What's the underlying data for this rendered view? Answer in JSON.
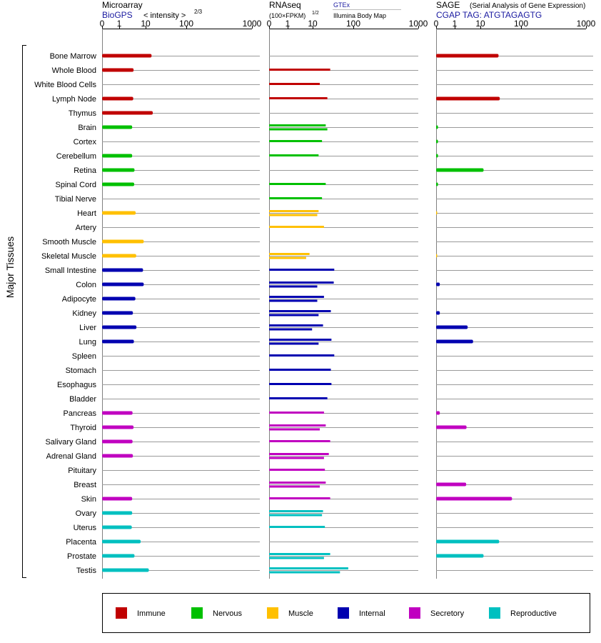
{
  "panels": [
    {
      "title": "Microarray",
      "title_suffix": "< intensity >",
      "exponent": "2/3",
      "source": "BioGPS",
      "ticks": [
        "0",
        "1",
        "10",
        "100",
        "1000"
      ]
    },
    {
      "title": "RNAseq",
      "title_sub": "(100×FPKM)",
      "exponent": "1/2",
      "source1": "GTEx",
      "source2": "Illumina Body Map",
      "ticks": [
        "0",
        "1",
        "10",
        "100",
        "1000"
      ]
    },
    {
      "title": "SAGE",
      "title_note": "(Serial Analysis of Gene Expression)",
      "source": "CGAP TAG: ATGTAGAGTG",
      "ticks": [
        "0",
        "1",
        "10",
        "100",
        "1000"
      ]
    }
  ],
  "y_group_label": "Major Tissues",
  "legend": [
    {
      "label": "Immune",
      "color": "#c00000"
    },
    {
      "label": "Nervous",
      "color": "#00c000"
    },
    {
      "label": "Muscle",
      "color": "#ffc000"
    },
    {
      "label": "Internal",
      "color": "#0000b0"
    },
    {
      "label": "Secretory",
      "color": "#c000c0"
    },
    {
      "label": "Reproductive",
      "color": "#00c0c0"
    }
  ],
  "chart_data": {
    "type": "bar",
    "orientation": "horizontal",
    "x_scale": "log-like (0, 1, 10, 100, 1000)",
    "xlim": [
      0,
      1000
    ],
    "categories": [
      "Bone Marrow",
      "Whole Blood",
      "White Blood Cells",
      "Lymph Node",
      "Thymus",
      "Brain",
      "Cortex",
      "Cerebellum",
      "Retina",
      "Spinal Cord",
      "Tibial Nerve",
      "Heart",
      "Artery",
      "Smooth Muscle",
      "Skeletal Muscle",
      "Small Intestine",
      "Colon",
      "Adipocyte",
      "Kidney",
      "Liver",
      "Lung",
      "Spleen",
      "Stomach",
      "Esophagus",
      "Bladder",
      "Pancreas",
      "Thyroid",
      "Salivary Gland",
      "Adrenal Gland",
      "Pituitary",
      "Breast",
      "Skin",
      "Ovary",
      "Uterus",
      "Placenta",
      "Prostate",
      "Testis"
    ],
    "groups": [
      "Immune",
      "Immune",
      "Immune",
      "Immune",
      "Immune",
      "Nervous",
      "Nervous",
      "Nervous",
      "Nervous",
      "Nervous",
      "Nervous",
      "Muscle",
      "Muscle",
      "Muscle",
      "Muscle",
      "Internal",
      "Internal",
      "Internal",
      "Internal",
      "Internal",
      "Internal",
      "Internal",
      "Internal",
      "Internal",
      "Internal",
      "Secretory",
      "Secretory",
      "Secretory",
      "Secretory",
      "Secretory",
      "Secretory",
      "Secretory",
      "Reproductive",
      "Reproductive",
      "Reproductive",
      "Reproductive",
      "Reproductive"
    ],
    "series": [
      {
        "name": "Microarray",
        "values": [
          14,
          3.5,
          null,
          3.4,
          15,
          3.1,
          null,
          3.1,
          3.8,
          3.7,
          null,
          4.2,
          null,
          8.5,
          4.4,
          8,
          8.5,
          4.1,
          3.3,
          4.5,
          3.6,
          null,
          null,
          null,
          null,
          3.2,
          3.5,
          3.2,
          3.3,
          null,
          null,
          3.1,
          3.1,
          3.0,
          6.5,
          3.8,
          12
        ]
      },
      {
        "name": "RNAseq GTEx",
        "values": [
          null,
          27,
          15,
          23,
          null,
          21,
          17,
          14,
          null,
          21,
          17,
          14,
          19,
          null,
          7.5,
          34,
          33,
          19,
          28,
          18,
          29,
          34,
          28,
          29,
          23,
          19,
          21,
          27,
          25,
          20,
          21,
          27,
          18,
          20,
          null,
          27,
          75
        ]
      },
      {
        "name": "RNAseq Illumina Body Map",
        "values": [
          null,
          null,
          null,
          null,
          null,
          23,
          null,
          null,
          null,
          null,
          null,
          13,
          null,
          null,
          5.5,
          null,
          13,
          13,
          14,
          9.5,
          14,
          null,
          null,
          null,
          null,
          null,
          15,
          null,
          19,
          null,
          15,
          null,
          17,
          null,
          null,
          19,
          47
        ]
      },
      {
        "name": "SAGE",
        "values": [
          28,
          null,
          null,
          30,
          null,
          0.1,
          0.1,
          0.1,
          12,
          0.1,
          null,
          0.05,
          null,
          null,
          0.05,
          null,
          0.2,
          null,
          0.2,
          3.2,
          5.2,
          null,
          null,
          null,
          null,
          0.2,
          2.9,
          null,
          null,
          null,
          2.8,
          60,
          null,
          null,
          29,
          12,
          null
        ]
      }
    ]
  }
}
